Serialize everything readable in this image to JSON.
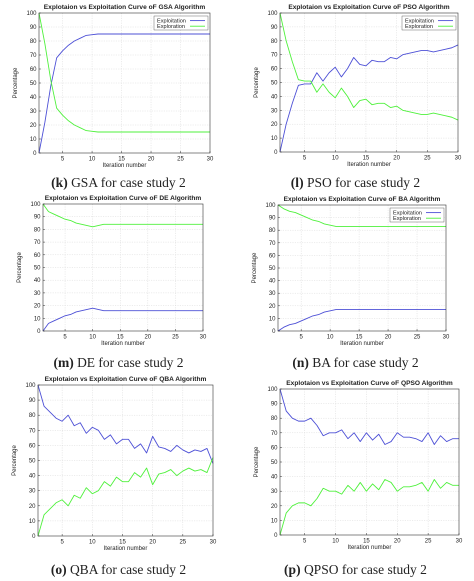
{
  "colors": {
    "exploitation": "#4d50d6",
    "exploration": "#4ff13c",
    "grid": "#d9d9d9",
    "axis": "#333333",
    "legend_border": "#444444"
  },
  "chart_data": [
    {
      "type": "line",
      "title": "Explotaion vs Exploitation Curve oF GSA Algorithm",
      "xlabel": "Iteration number",
      "ylabel": "Percentage",
      "xlim": [
        1,
        30
      ],
      "ylim": [
        0,
        100
      ],
      "xticks": [
        5,
        10,
        15,
        20,
        25,
        30
      ],
      "yticks": [
        0,
        10,
        20,
        30,
        40,
        50,
        60,
        70,
        80,
        90,
        100
      ],
      "grid": true,
      "legend": "top-right",
      "caption": {
        "tag": "k",
        "text": "GSA for case study 2"
      },
      "x": [
        1,
        2,
        3,
        4,
        5,
        6,
        7,
        8,
        9,
        10,
        11,
        12,
        13,
        14,
        15,
        16,
        17,
        18,
        19,
        20,
        21,
        22,
        23,
        24,
        25,
        26,
        27,
        28,
        29,
        30
      ],
      "series": [
        {
          "name": "Exploitation",
          "values": [
            0,
            22,
            48,
            68,
            73,
            77,
            80,
            82,
            84,
            84.5,
            85,
            85,
            85,
            85,
            85,
            85,
            85,
            85,
            85,
            85,
            85,
            85,
            85,
            85,
            85,
            85,
            85,
            85,
            85,
            85
          ]
        },
        {
          "name": "Exploration",
          "values": [
            100,
            78,
            52,
            32,
            27,
            23,
            20,
            18,
            16,
            15.5,
            15,
            15,
            15,
            15,
            15,
            15,
            15,
            15,
            15,
            15,
            15,
            15,
            15,
            15,
            15,
            15,
            15,
            15,
            15,
            15
          ]
        }
      ]
    },
    {
      "type": "line",
      "title": "Explotaion vs Exploitation Curve oF PSO Algorithm",
      "xlabel": "Iteration number",
      "ylabel": "Percentage",
      "xlim": [
        1,
        30
      ],
      "ylim": [
        0,
        100
      ],
      "xticks": [
        5,
        10,
        15,
        20,
        25,
        30
      ],
      "yticks": [
        0,
        10,
        20,
        30,
        40,
        50,
        60,
        70,
        80,
        90,
        100
      ],
      "grid": true,
      "legend": "top-right",
      "caption": {
        "tag": "l",
        "text": "PSO for case study 2"
      },
      "x": [
        1,
        2,
        3,
        4,
        5,
        6,
        7,
        8,
        9,
        10,
        11,
        12,
        13,
        14,
        15,
        16,
        17,
        18,
        19,
        20,
        21,
        22,
        23,
        24,
        25,
        26,
        27,
        28,
        29,
        30
      ],
      "series": [
        {
          "name": "Exploitation",
          "values": [
            0,
            20,
            35,
            48,
            49,
            49,
            57,
            51,
            57,
            61,
            54,
            60,
            68,
            63,
            62,
            66,
            65,
            65,
            68,
            67,
            70,
            71,
            72,
            73,
            73,
            72,
            73,
            74,
            75,
            77
          ]
        },
        {
          "name": "Exploration",
          "values": [
            100,
            80,
            65,
            52,
            51,
            51,
            43,
            49,
            43,
            39,
            46,
            40,
            32,
            37,
            38,
            34,
            35,
            35,
            32,
            33,
            30,
            29,
            28,
            27,
            27,
            28,
            27,
            26,
            25,
            23
          ]
        }
      ]
    },
    {
      "type": "line",
      "title": "Explotaion vs Exploitation Curve oF DE Algorithm",
      "xlabel": "Iteration number",
      "ylabel": "Percentage",
      "xlim": [
        1,
        30
      ],
      "ylim": [
        0,
        100
      ],
      "xticks": [
        5,
        10,
        15,
        20,
        25,
        30
      ],
      "yticks": [
        0,
        10,
        20,
        30,
        40,
        50,
        60,
        70,
        80,
        90,
        100
      ],
      "grid": true,
      "legend": "none",
      "caption": {
        "tag": "m",
        "text": "DE for case study 2"
      },
      "x": [
        1,
        2,
        3,
        4,
        5,
        6,
        7,
        8,
        9,
        10,
        11,
        12,
        13,
        14,
        15,
        16,
        17,
        18,
        19,
        20,
        21,
        22,
        23,
        24,
        25,
        26,
        27,
        28,
        29,
        30
      ],
      "series": [
        {
          "name": "",
          "values": [
            0,
            6,
            8,
            10,
            12,
            13,
            15,
            16,
            17,
            18,
            17,
            16,
            16,
            16,
            16,
            16,
            16,
            16,
            16,
            16,
            16,
            16,
            16,
            16,
            16,
            16,
            16,
            16,
            16,
            16
          ]
        },
        {
          "name": "",
          "values": [
            100,
            94,
            92,
            90,
            88,
            87,
            85,
            84,
            83,
            82,
            83,
            84,
            84,
            84,
            84,
            84,
            84,
            84,
            84,
            84,
            84,
            84,
            84,
            84,
            84,
            84,
            84,
            84,
            84,
            84
          ]
        }
      ]
    },
    {
      "type": "line",
      "title": "Explotaion vs Exploitation Curve oF BA Algorithm",
      "xlabel": "Iteration number",
      "ylabel": "Percentage",
      "xlim": [
        1,
        30
      ],
      "ylim": [
        0,
        100
      ],
      "xticks": [
        5,
        10,
        15,
        20,
        25,
        30
      ],
      "yticks": [
        0,
        10,
        20,
        30,
        40,
        50,
        60,
        70,
        80,
        90,
        100
      ],
      "grid": true,
      "legend": "top-right",
      "caption": {
        "tag": "n",
        "text": "BA for case study 2"
      },
      "x": [
        1,
        2,
        3,
        4,
        5,
        6,
        7,
        8,
        9,
        10,
        11,
        12,
        13,
        14,
        15,
        16,
        17,
        18,
        19,
        20,
        21,
        22,
        23,
        24,
        25,
        26,
        27,
        28,
        29,
        30
      ],
      "series": [
        {
          "name": "Exploitation",
          "values": [
            0,
            3,
            5,
            6,
            8,
            10,
            12,
            13,
            15,
            16,
            17,
            17,
            17,
            17,
            17,
            17,
            17,
            17,
            17,
            17,
            17,
            17,
            17,
            17,
            17,
            17,
            17,
            17,
            17,
            17
          ]
        },
        {
          "name": "Exploration",
          "values": [
            100,
            97,
            95,
            94,
            92,
            90,
            88,
            87,
            85,
            84,
            83,
            83,
            83,
            83,
            83,
            83,
            83,
            83,
            83,
            83,
            83,
            83,
            83,
            83,
            83,
            83,
            83,
            83,
            83,
            83
          ]
        }
      ]
    },
    {
      "type": "line",
      "title": "Explotaion vs Exploitation Curve oF QBA Algorithm",
      "xlabel": "Iteration number",
      "ylabel": "Percentage",
      "xlim": [
        1,
        30
      ],
      "ylim": [
        0,
        100
      ],
      "xticks": [
        5,
        10,
        15,
        20,
        25,
        30
      ],
      "yticks": [
        0,
        10,
        20,
        30,
        40,
        50,
        60,
        70,
        80,
        90,
        100
      ],
      "grid": true,
      "legend": "none",
      "caption": {
        "tag": "o",
        "text": "QBA for case study 2"
      },
      "x": [
        1,
        2,
        3,
        4,
        5,
        6,
        7,
        8,
        9,
        10,
        11,
        12,
        13,
        14,
        15,
        16,
        17,
        18,
        19,
        20,
        21,
        22,
        23,
        24,
        25,
        26,
        27,
        28,
        29,
        30
      ],
      "series": [
        {
          "name": "",
          "values": [
            100,
            86,
            82,
            78,
            76,
            80,
            73,
            75,
            68,
            72,
            70,
            64,
            67,
            61,
            64,
            64,
            58,
            61,
            55,
            66,
            59,
            58,
            56,
            60,
            57,
            55,
            57,
            56,
            58,
            48
          ]
        },
        {
          "name": "",
          "values": [
            0,
            14,
            18,
            22,
            24,
            20,
            27,
            25,
            32,
            28,
            30,
            36,
            33,
            39,
            36,
            36,
            42,
            39,
            45,
            34,
            41,
            42,
            44,
            40,
            43,
            45,
            43,
            44,
            42,
            52
          ]
        }
      ]
    },
    {
      "type": "line",
      "title": "Explotaion vs Exploitation Curve oF QPSO Algorithm",
      "xlabel": "Iteration number",
      "ylabel": "Percentage",
      "xlim": [
        1,
        30
      ],
      "ylim": [
        0,
        100
      ],
      "xticks": [
        5,
        10,
        15,
        20,
        25,
        30
      ],
      "yticks": [
        0,
        10,
        20,
        30,
        40,
        50,
        60,
        70,
        80,
        90,
        100
      ],
      "grid": true,
      "legend": "none",
      "caption": {
        "tag": "p",
        "text": "QPSO for case study 2"
      },
      "x": [
        1,
        2,
        3,
        4,
        5,
        6,
        7,
        8,
        9,
        10,
        11,
        12,
        13,
        14,
        15,
        16,
        17,
        18,
        19,
        20,
        21,
        22,
        23,
        24,
        25,
        26,
        27,
        28,
        29,
        30
      ],
      "series": [
        {
          "name": "",
          "values": [
            100,
            85,
            80,
            78,
            78,
            80,
            75,
            68,
            70,
            70,
            72,
            66,
            70,
            64,
            70,
            65,
            69,
            62,
            64,
            70,
            67,
            67,
            66,
            64,
            70,
            62,
            68,
            64,
            66,
            66
          ]
        },
        {
          "name": "",
          "values": [
            0,
            15,
            20,
            22,
            22,
            20,
            25,
            32,
            30,
            30,
            28,
            34,
            30,
            36,
            30,
            35,
            31,
            38,
            36,
            30,
            33,
            33,
            34,
            36,
            30,
            38,
            32,
            36,
            34,
            34
          ]
        }
      ]
    }
  ]
}
